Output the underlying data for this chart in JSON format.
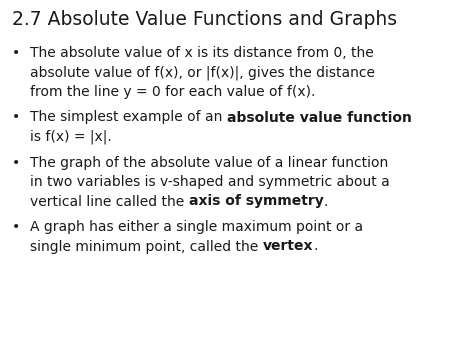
{
  "title": "2.7 Absolute Value Functions and Graphs",
  "background_color": "#ffffff",
  "text_color": "#1a1a1a",
  "title_fontsize": 13.5,
  "body_fontsize": 10.0,
  "bullet_char": "•",
  "bullets": [
    {
      "wrapped_lines": [
        [
          {
            "text": "The absolute value of x is its distance from 0, the",
            "bold": false
          }
        ],
        [
          {
            "text": "absolute value of f(x), or |f(x)|, gives the distance",
            "bold": false
          }
        ],
        [
          {
            "text": "from the line y = 0 for each value of f(x).",
            "bold": false
          }
        ]
      ]
    },
    {
      "wrapped_lines": [
        [
          {
            "text": "The simplest example of an ",
            "bold": false
          },
          {
            "text": "absolute value function",
            "bold": true
          }
        ],
        [
          {
            "text": "is f(x) = |x|.",
            "bold": false
          }
        ]
      ]
    },
    {
      "wrapped_lines": [
        [
          {
            "text": "The graph of the absolute value of a linear function",
            "bold": false
          }
        ],
        [
          {
            "text": "in two variables is v-shaped and symmetric about a",
            "bold": false
          }
        ],
        [
          {
            "text": "vertical line called the ",
            "bold": false
          },
          {
            "text": "axis of symmetry",
            "bold": true
          },
          {
            "text": ".",
            "bold": false
          }
        ]
      ]
    },
    {
      "wrapped_lines": [
        [
          {
            "text": "A graph has either a single maximum point or a",
            "bold": false
          }
        ],
        [
          {
            "text": "single minimum point, called the ",
            "bold": false
          },
          {
            "text": "vertex",
            "bold": true
          },
          {
            "text": ".",
            "bold": false
          }
        ]
      ]
    }
  ]
}
